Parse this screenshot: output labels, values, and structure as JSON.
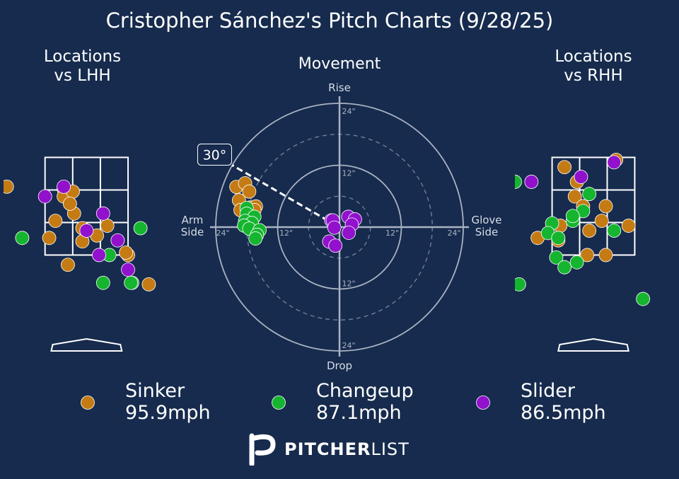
{
  "title": "Cristopher Sánchez's Pitch Charts (9/28/25)",
  "colors": {
    "background": "#162b4d",
    "text": "#ffffff",
    "sinker": "#c57b13",
    "changeup": "#15b52f",
    "slider": "#9111cc"
  },
  "chart_data": [
    {
      "type": "scatter",
      "title": "Locations\nvs LHH",
      "zone": {
        "x": [
          -1,
          1
        ],
        "z": [
          1.5,
          3.5
        ]
      },
      "xlim": [
        -2.0,
        1.8
      ],
      "ylim": [
        -0.45,
        4.55
      ],
      "series": [
        {
          "name": "Sinker",
          "points": [
            [
              -1.92,
              2.9
            ],
            [
              -0.55,
              2.85
            ],
            [
              -0.55,
              2.7
            ],
            [
              -0.33,
              2.8
            ],
            [
              -0.75,
              2.2
            ],
            [
              -0.3,
              2.35
            ],
            [
              -0.4,
              2.55
            ],
            [
              -0.1,
              2.05
            ],
            [
              0.5,
              2.1
            ],
            [
              0.25,
              1.9
            ],
            [
              -0.9,
              1.85
            ],
            [
              -0.1,
              1.78
            ],
            [
              1.0,
              1.5
            ],
            [
              -0.45,
              1.3
            ],
            [
              0.95,
              1.55
            ],
            [
              1.5,
              0.9
            ]
          ]
        },
        {
          "name": "Changeup",
          "points": [
            [
              -1.55,
              1.85
            ],
            [
              0.55,
              1.5
            ],
            [
              1.3,
              2.05
            ],
            [
              0.4,
              0.93
            ],
            [
              1.1,
              0.93
            ],
            [
              1.07,
              0.93
            ]
          ]
        },
        {
          "name": "Slider",
          "points": [
            [
              -0.55,
              2.9
            ],
            [
              0.4,
              2.35
            ],
            [
              0.3,
              1.5
            ],
            [
              1.0,
              1.2
            ],
            [
              0.75,
              1.8
            ],
            [
              -1.0,
              2.7
            ],
            [
              0.0,
              2.0
            ]
          ]
        }
      ]
    },
    {
      "type": "scatter",
      "title": "Movement",
      "xlabel_left": "Arm\nSide",
      "xlabel_right": "Glove\nSide",
      "ylabel_top": "Rise",
      "ylabel_bottom": "Drop",
      "rings": [
        "24\"",
        "12\""
      ],
      "arm_angle": "30°",
      "series": [
        {
          "name": "Sinker",
          "points": [
            [
              -20,
              7.8
            ],
            [
              -18.3,
              8.5
            ],
            [
              -17.5,
              6.9
            ],
            [
              -19.5,
              5.2
            ],
            [
              -17.3,
              3.8
            ],
            [
              -19.2,
              3.3
            ],
            [
              -16.2,
              4.0
            ],
            [
              -16.5,
              3.3
            ]
          ]
        },
        {
          "name": "Changeup",
          "points": [
            [
              -18,
              3.7
            ],
            [
              -18,
              2.6
            ],
            [
              -16.5,
              2.0
            ],
            [
              -18.3,
              1.2
            ],
            [
              -17,
              0.8
            ],
            [
              -18.5,
              0.3
            ],
            [
              -17.5,
              -0.3
            ],
            [
              -15.5,
              -0.6
            ],
            [
              -16,
              -1.5
            ],
            [
              -16.3,
              -2.2
            ]
          ]
        },
        {
          "name": "Slider",
          "points": [
            [
              -1.6,
              1.3
            ],
            [
              -1.3,
              1.3
            ],
            [
              1.7,
              2.0
            ],
            [
              3.0,
              1.5
            ],
            [
              2.4,
              0.5
            ],
            [
              -1.0,
              -0.1
            ],
            [
              1.8,
              -1.1
            ],
            [
              -2.0,
              -2.8
            ],
            [
              -0.8,
              -3.6
            ]
          ]
        }
      ]
    },
    {
      "type": "scatter",
      "title": "Locations\nvs RHH",
      "zone": {
        "x": [
          -1,
          1
        ],
        "z": [
          1.5,
          3.5
        ]
      },
      "xlim": [
        -1.9,
        1.9
      ],
      "ylim": [
        -0.45,
        4.55
      ],
      "series": [
        {
          "name": "Sinker",
          "points": [
            [
              -0.7,
              3.3
            ],
            [
              -0.4,
              3.0
            ],
            [
              -0.45,
              2.7
            ],
            [
              -0.25,
              2.5
            ],
            [
              0.2,
              2.2
            ],
            [
              -0.1,
              2.0
            ],
            [
              0.3,
              2.5
            ],
            [
              0.85,
              2.1
            ],
            [
              -0.8,
              2.1
            ],
            [
              -0.85,
              1.8
            ],
            [
              -1.35,
              1.85
            ],
            [
              0.3,
              1.5
            ],
            [
              -0.15,
              1.5
            ],
            [
              0.55,
              3.45
            ]
          ]
        },
        {
          "name": "Changeup",
          "points": [
            [
              -0.25,
              2.4
            ],
            [
              -0.5,
              2.2
            ],
            [
              -1.0,
              2.15
            ],
            [
              -1.1,
              1.95
            ],
            [
              -0.5,
              2.3
            ],
            [
              -0.1,
              2.75
            ],
            [
              -0.85,
              1.85
            ],
            [
              -0.9,
              1.45
            ],
            [
              -0.7,
              1.25
            ],
            [
              -0.4,
              1.35
            ],
            [
              -1.8,
              0.9
            ],
            [
              0.5,
              2.0
            ],
            [
              1.2,
              0.6
            ],
            [
              -1.9,
              3.0
            ]
          ]
        },
        {
          "name": "Slider",
          "points": [
            [
              -0.3,
              3.1
            ],
            [
              -1.5,
              3.0
            ],
            [
              0.5,
              3.4
            ]
          ]
        }
      ]
    }
  ],
  "legend": [
    {
      "name": "Sinker",
      "speed": "95.9mph"
    },
    {
      "name": "Changeup",
      "speed": "87.1mph"
    },
    {
      "name": "Slider",
      "speed": "86.5mph"
    }
  ],
  "logo": {
    "strong": "PITCHER",
    "light": "LIST"
  }
}
